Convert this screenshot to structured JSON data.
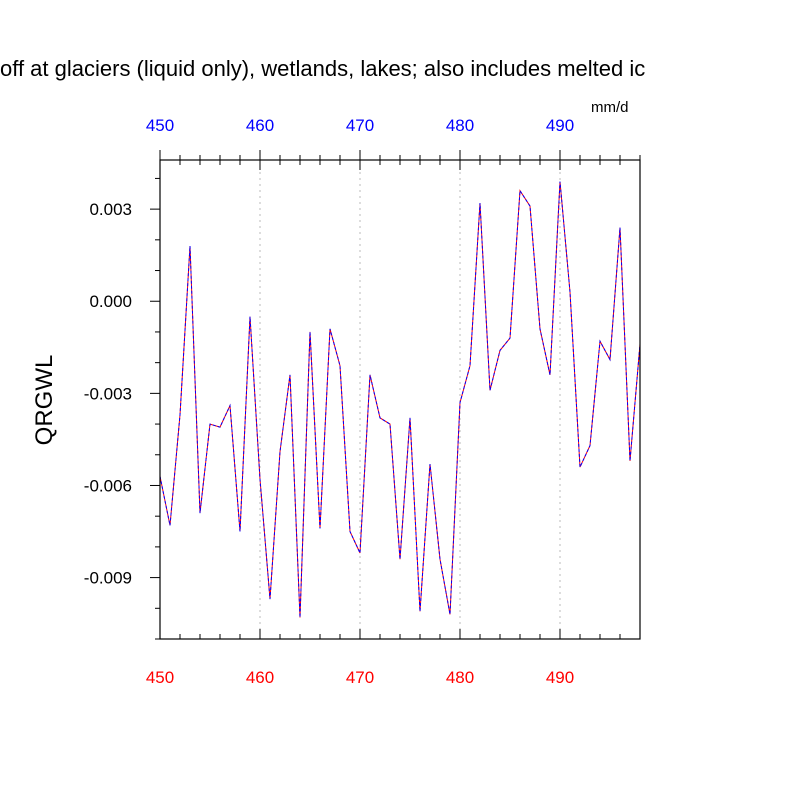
{
  "chart_data": {
    "type": "line",
    "title": "off at glaciers (liquid only), wetlands, lakes; also includes melted ic",
    "ylabel": "QRGWL",
    "units": "mm/d",
    "xlim": [
      450,
      498
    ],
    "ylim": [
      -0.011,
      0.0046
    ],
    "x_ticks": [
      "450",
      "460",
      "470",
      "480",
      "490"
    ],
    "y_ticks": [
      "0.003",
      "0.000",
      "-0.003",
      "-0.006",
      "-0.009"
    ],
    "grid": "vertical dotted at major x ticks",
    "colors": {
      "bottom_axis_labels": "#ff0000",
      "top_axis_labels": "#0000ff",
      "line_primary": "#ff0000",
      "line_overlay": "#0000ff",
      "grid": "#bbbbbb"
    },
    "series": [
      {
        "x": [
          450,
          451,
          452,
          453,
          454,
          455,
          456,
          457,
          458,
          459,
          460,
          461,
          462,
          463,
          464,
          465,
          466,
          467,
          468,
          469,
          470,
          471,
          472,
          473,
          474,
          475,
          476,
          477,
          478,
          479,
          480,
          481,
          482,
          483,
          484,
          485,
          486,
          487,
          488,
          489,
          490,
          491,
          492,
          493,
          494,
          495,
          496,
          497,
          498
        ],
        "values": [
          -0.0057,
          -0.0073,
          -0.0037,
          0.0018,
          -0.0069,
          -0.004,
          -0.0041,
          -0.0034,
          -0.0075,
          -0.0005,
          -0.0058,
          -0.0097,
          -0.0049,
          -0.0024,
          -0.0103,
          -0.001,
          -0.0074,
          -0.0009,
          -0.0021,
          -0.0075,
          -0.0082,
          -0.0024,
          -0.0038,
          -0.004,
          -0.0084,
          -0.0038,
          -0.0101,
          -0.0053,
          -0.0084,
          -0.0102,
          -0.0033,
          -0.0021,
          0.0032,
          -0.0029,
          -0.0016,
          -0.0012,
          0.0036,
          0.0031,
          -0.0009,
          -0.0024,
          0.0039,
          0.0003,
          -0.0054,
          -0.0047,
          -0.0013,
          -0.0019,
          0.0024,
          -0.0052,
          -0.0014
        ]
      }
    ]
  }
}
